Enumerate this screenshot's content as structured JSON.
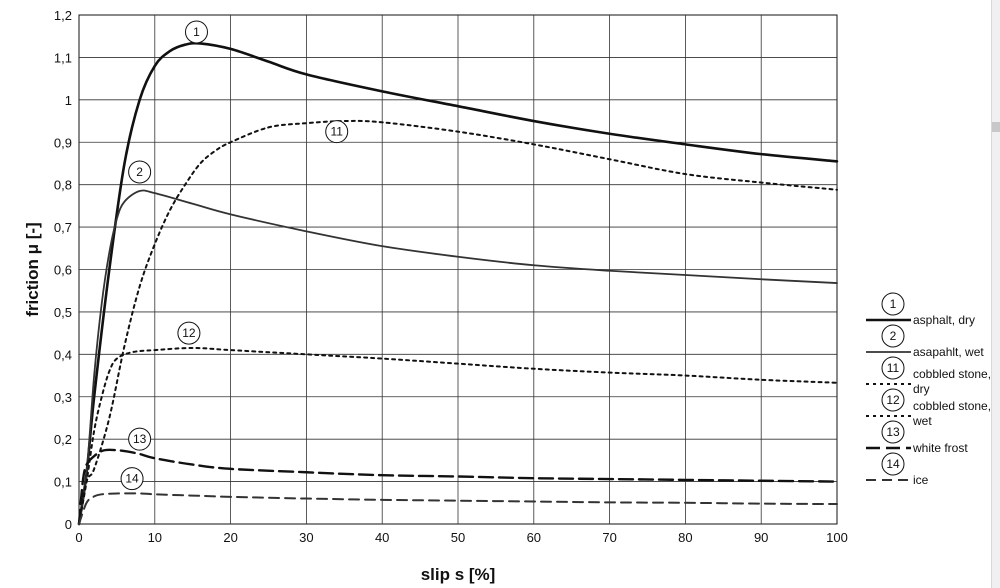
{
  "chart_data": {
    "type": "line",
    "xlabel": "slip s [%]",
    "ylabel": "friction μ [-]",
    "xlim": [
      0,
      100
    ],
    "ylim": [
      0,
      1.2
    ],
    "x_ticks": [
      "0",
      "10",
      "20",
      "30",
      "40",
      "50",
      "60",
      "70",
      "80",
      "90",
      "100"
    ],
    "y_ticks": [
      "0",
      "0,1",
      "0,2",
      "0,3",
      "0,4",
      "0,5",
      "0,6",
      "0,7",
      "0,8",
      "0,9",
      "1",
      "1,1",
      "1,2"
    ],
    "grid": true,
    "legend_position": "right",
    "series": [
      {
        "marker": "1",
        "name": "asphalt, dry",
        "style": "solid-thick",
        "color": "#111111",
        "label_at": [
          15.5,
          1.16
        ],
        "points": [
          [
            0,
            0
          ],
          [
            1,
            0.12
          ],
          [
            2,
            0.3
          ],
          [
            4,
            0.6
          ],
          [
            6,
            0.85
          ],
          [
            8,
            1.0
          ],
          [
            10,
            1.08
          ],
          [
            12,
            1.115
          ],
          [
            14,
            1.13
          ],
          [
            16,
            1.133
          ],
          [
            20,
            1.12
          ],
          [
            25,
            1.09
          ],
          [
            30,
            1.06
          ],
          [
            40,
            1.02
          ],
          [
            50,
            0.985
          ],
          [
            60,
            0.95
          ],
          [
            70,
            0.92
          ],
          [
            80,
            0.895
          ],
          [
            90,
            0.872
          ],
          [
            100,
            0.855
          ]
        ]
      },
      {
        "marker": "2",
        "name": "asapahlt, wet",
        "style": "solid",
        "color": "#333333",
        "label_at": [
          8,
          0.83
        ],
        "points": [
          [
            0,
            0
          ],
          [
            1,
            0.12
          ],
          [
            2,
            0.35
          ],
          [
            3,
            0.52
          ],
          [
            4,
            0.64
          ],
          [
            5,
            0.72
          ],
          [
            6,
            0.76
          ],
          [
            8,
            0.785
          ],
          [
            10,
            0.78
          ],
          [
            15,
            0.755
          ],
          [
            20,
            0.73
          ],
          [
            30,
            0.69
          ],
          [
            40,
            0.655
          ],
          [
            50,
            0.63
          ],
          [
            60,
            0.61
          ],
          [
            70,
            0.597
          ],
          [
            80,
            0.587
          ],
          [
            90,
            0.577
          ],
          [
            100,
            0.568
          ]
        ]
      },
      {
        "marker": "11",
        "name": "cobbled stone, dry",
        "style": "dotted",
        "color": "#111111",
        "label_at": [
          34,
          0.925
        ],
        "points": [
          [
            0,
            0
          ],
          [
            1,
            0.1
          ],
          [
            2,
            0.13
          ],
          [
            4,
            0.25
          ],
          [
            6,
            0.42
          ],
          [
            8,
            0.56
          ],
          [
            10,
            0.66
          ],
          [
            12,
            0.74
          ],
          [
            14,
            0.8
          ],
          [
            16,
            0.85
          ],
          [
            18,
            0.88
          ],
          [
            20,
            0.9
          ],
          [
            25,
            0.935
          ],
          [
            30,
            0.945
          ],
          [
            35,
            0.95
          ],
          [
            40,
            0.947
          ],
          [
            50,
            0.925
          ],
          [
            60,
            0.895
          ],
          [
            70,
            0.86
          ],
          [
            80,
            0.825
          ],
          [
            90,
            0.805
          ],
          [
            100,
            0.788
          ]
        ]
      },
      {
        "marker": "12",
        "name": "cobbled stone, wet",
        "style": "dotted",
        "color": "#111111",
        "label_at": [
          14.5,
          0.45
        ],
        "points": [
          [
            0,
            0
          ],
          [
            1,
            0.1
          ],
          [
            2,
            0.22
          ],
          [
            3,
            0.3
          ],
          [
            4,
            0.36
          ],
          [
            5,
            0.39
          ],
          [
            7,
            0.405
          ],
          [
            10,
            0.41
          ],
          [
            15,
            0.415
          ],
          [
            20,
            0.41
          ],
          [
            30,
            0.4
          ],
          [
            40,
            0.39
          ],
          [
            50,
            0.378
          ],
          [
            60,
            0.366
          ],
          [
            70,
            0.357
          ],
          [
            80,
            0.35
          ],
          [
            90,
            0.34
          ],
          [
            100,
            0.333
          ]
        ]
      },
      {
        "marker": "13",
        "name": "white frost",
        "style": "long-dash",
        "color": "#111111",
        "label_at": [
          8,
          0.2
        ],
        "points": [
          [
            0,
            0
          ],
          [
            0.5,
            0.1
          ],
          [
            1,
            0.14
          ],
          [
            2,
            0.16
          ],
          [
            3,
            0.172
          ],
          [
            4,
            0.175
          ],
          [
            6,
            0.172
          ],
          [
            8,
            0.165
          ],
          [
            10,
            0.155
          ],
          [
            15,
            0.14
          ],
          [
            20,
            0.13
          ],
          [
            30,
            0.122
          ],
          [
            40,
            0.115
          ],
          [
            50,
            0.112
          ],
          [
            60,
            0.108
          ],
          [
            70,
            0.106
          ],
          [
            80,
            0.104
          ],
          [
            90,
            0.102
          ],
          [
            100,
            0.1
          ]
        ]
      },
      {
        "marker": "14",
        "name": "ice",
        "style": "dash",
        "color": "#333333",
        "label_at": [
          7,
          0.107
        ],
        "points": [
          [
            0,
            0
          ],
          [
            1,
            0.05
          ],
          [
            2,
            0.065
          ],
          [
            3,
            0.07
          ],
          [
            5,
            0.072
          ],
          [
            8,
            0.072
          ],
          [
            10,
            0.07
          ],
          [
            15,
            0.067
          ],
          [
            20,
            0.064
          ],
          [
            30,
            0.06
          ],
          [
            40,
            0.057
          ],
          [
            50,
            0.055
          ],
          [
            60,
            0.053
          ],
          [
            70,
            0.051
          ],
          [
            80,
            0.05
          ],
          [
            90,
            0.048
          ],
          [
            100,
            0.047
          ]
        ]
      }
    ]
  }
}
